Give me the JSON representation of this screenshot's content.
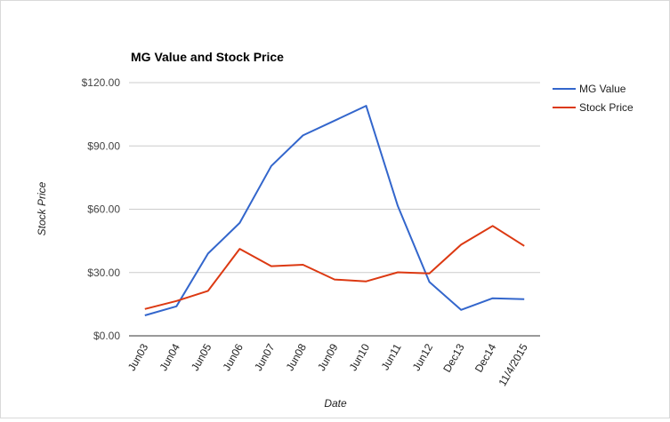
{
  "chart_data": {
    "type": "line",
    "title": "MG Value and Stock Price",
    "xlabel": "Date",
    "ylabel": "Stock Price",
    "categories": [
      "Jun03",
      "Jun04",
      "Jun05",
      "Jun06",
      "Jun07",
      "Jun08",
      "Jun09",
      "Jun10",
      "Jun11",
      "Jun12",
      "Dec13",
      "Dec14",
      "11/4/2015"
    ],
    "y_ticks": [
      "$0.00",
      "$30.00",
      "$60.00",
      "$90.00",
      "$120.00"
    ],
    "ylim": [
      0,
      120
    ],
    "grid": true,
    "legend_position": "right",
    "series": [
      {
        "name": "MG Value",
        "color": "#3366cc",
        "values": [
          9.7,
          14.0,
          39.0,
          53.5,
          80.5,
          95.0,
          102.0,
          109.0,
          61.5,
          25.5,
          12.3,
          17.8,
          17.4
        ]
      },
      {
        "name": "Stock Price",
        "color": "#dc3912",
        "values": [
          12.7,
          16.5,
          21.3,
          41.2,
          33.0,
          33.7,
          26.7,
          25.8,
          30.1,
          29.6,
          43.2,
          52.1,
          42.6
        ]
      }
    ]
  }
}
